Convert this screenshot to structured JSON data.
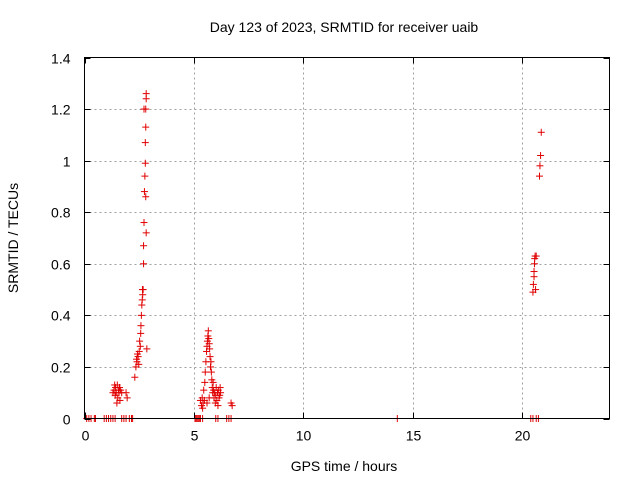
{
  "chart_data": {
    "type": "scatter",
    "title": "Day 123 of 2023, SRMTID for receiver uaib",
    "xlabel": "GPS time / hours",
    "ylabel": "SRMTID / TECUs",
    "xlim": [
      0,
      24
    ],
    "ylim": [
      0,
      1.4
    ],
    "xticks": [
      0,
      5,
      10,
      15,
      20
    ],
    "xtick_labels": [
      "0",
      "5",
      "10",
      "15",
      "20"
    ],
    "yticks": [
      0,
      0.2,
      0.4,
      0.6,
      0.8,
      1,
      1.2,
      1.4
    ],
    "ytick_labels": [
      "0",
      "0.2",
      "0.4",
      "0.6",
      "0.8",
      "1",
      "1.2",
      "1.4"
    ],
    "grid": true,
    "marker": "plus",
    "color": "#e00000",
    "series": [
      {
        "name": "SRMTID",
        "points": [
          [
            0.1,
            0
          ],
          [
            0.2,
            0
          ],
          [
            0.3,
            0
          ],
          [
            0.45,
            0
          ],
          [
            0.5,
            0
          ],
          [
            0.9,
            0
          ],
          [
            1.0,
            0
          ],
          [
            1.1,
            0
          ],
          [
            1.2,
            0
          ],
          [
            1.3,
            0
          ],
          [
            1.4,
            0
          ],
          [
            1.7,
            0
          ],
          [
            1.8,
            0
          ],
          [
            1.9,
            0
          ],
          [
            2.05,
            0
          ],
          [
            2.15,
            0
          ],
          [
            2.2,
            0
          ],
          [
            1.3,
            0.1
          ],
          [
            1.35,
            0.11
          ],
          [
            1.4,
            0.09
          ],
          [
            1.42,
            0.12
          ],
          [
            1.45,
            0.1
          ],
          [
            1.5,
            0.13
          ],
          [
            1.52,
            0.08
          ],
          [
            1.55,
            0.11
          ],
          [
            1.58,
            0.1
          ],
          [
            1.6,
            0.12
          ],
          [
            1.62,
            0.07
          ],
          [
            1.65,
            0.11
          ],
          [
            1.7,
            0.1
          ],
          [
            1.48,
            0.06
          ],
          [
            1.38,
            0.13
          ],
          [
            1.44,
            0.1
          ],
          [
            1.9,
            0.1
          ],
          [
            1.95,
            0.08
          ],
          [
            2.3,
            0.16
          ],
          [
            2.35,
            0.2
          ],
          [
            2.38,
            0.23
          ],
          [
            2.4,
            0.22
          ],
          [
            2.42,
            0.25
          ],
          [
            2.45,
            0.24
          ],
          [
            2.48,
            0.21
          ],
          [
            2.5,
            0.26
          ],
          [
            2.52,
            0.3
          ],
          [
            2.55,
            0.28
          ],
          [
            2.57,
            0.33
          ],
          [
            2.58,
            0.36
          ],
          [
            2.6,
            0.4
          ],
          [
            2.62,
            0.44
          ],
          [
            2.64,
            0.46
          ],
          [
            2.65,
            0.5
          ],
          [
            2.66,
            0.48
          ],
          [
            2.68,
            0.5
          ],
          [
            2.7,
            0.6
          ],
          [
            2.7,
            0.67
          ],
          [
            2.72,
            0.76
          ],
          [
            2.74,
            0.88
          ],
          [
            2.76,
            0.94
          ],
          [
            2.78,
            0.99
          ],
          [
            2.8,
            0.86
          ],
          [
            2.78,
            1.07
          ],
          [
            2.8,
            1.13
          ],
          [
            2.8,
            1.2
          ],
          [
            2.82,
            1.24
          ],
          [
            2.82,
            1.26
          ],
          [
            2.82,
            0.72
          ],
          [
            2.85,
            0.27
          ],
          [
            2.72,
            1.2
          ],
          [
            5.05,
            0
          ],
          [
            5.1,
            0
          ],
          [
            5.15,
            0
          ],
          [
            5.2,
            0
          ],
          [
            5.25,
            0
          ],
          [
            5.3,
            0
          ],
          [
            5.4,
            0
          ],
          [
            5.3,
            0.07
          ],
          [
            5.35,
            0.05
          ],
          [
            5.38,
            0.08
          ],
          [
            5.4,
            0.04
          ],
          [
            5.42,
            0.06
          ],
          [
            5.45,
            0.11
          ],
          [
            5.48,
            0.07
          ],
          [
            5.5,
            0.14
          ],
          [
            5.52,
            0.18
          ],
          [
            5.55,
            0.22
          ],
          [
            5.58,
            0.26
          ],
          [
            5.6,
            0.28
          ],
          [
            5.62,
            0.3
          ],
          [
            5.64,
            0.32
          ],
          [
            5.66,
            0.34
          ],
          [
            5.68,
            0.31
          ],
          [
            5.7,
            0.29
          ],
          [
            5.72,
            0.27
          ],
          [
            5.74,
            0.24
          ],
          [
            5.76,
            0.2
          ],
          [
            5.78,
            0.22
          ],
          [
            5.8,
            0.18
          ],
          [
            5.82,
            0.15
          ],
          [
            5.84,
            0.12
          ],
          [
            5.86,
            0.1
          ],
          [
            5.88,
            0.14
          ],
          [
            5.9,
            0.11
          ],
          [
            5.92,
            0.08
          ],
          [
            5.95,
            0.1
          ],
          [
            5.98,
            0.06
          ],
          [
            6.0,
            0.09
          ],
          [
            6.02,
            0.12
          ],
          [
            6.05,
            0.07
          ],
          [
            6.08,
            0.1
          ],
          [
            6.1,
            0.05
          ],
          [
            6.12,
            0.11
          ],
          [
            6.15,
            0.08
          ],
          [
            6.18,
            0.09
          ],
          [
            6.2,
            0.12
          ],
          [
            6.22,
            0.1
          ],
          [
            5.6,
            0.06
          ],
          [
            5.7,
            0.08
          ],
          [
            6.0,
            0
          ],
          [
            6.1,
            0
          ],
          [
            6.5,
            0
          ],
          [
            6.6,
            0
          ],
          [
            6.7,
            0
          ],
          [
            6.7,
            0.06
          ],
          [
            6.75,
            0.05
          ],
          [
            14.3,
            0
          ],
          [
            20.4,
            0
          ],
          [
            20.5,
            0
          ],
          [
            20.65,
            0
          ],
          [
            20.75,
            0
          ],
          [
            20.5,
            0.49
          ],
          [
            20.52,
            0.52
          ],
          [
            20.55,
            0.55
          ],
          [
            20.55,
            0.57
          ],
          [
            20.57,
            0.6
          ],
          [
            20.58,
            0.62
          ],
          [
            20.6,
            0.63
          ],
          [
            20.62,
            0.5
          ],
          [
            20.65,
            0.63
          ],
          [
            20.8,
            0.94
          ],
          [
            20.82,
            0.98
          ],
          [
            20.85,
            1.02
          ],
          [
            20.88,
            1.11
          ]
        ]
      }
    ]
  }
}
